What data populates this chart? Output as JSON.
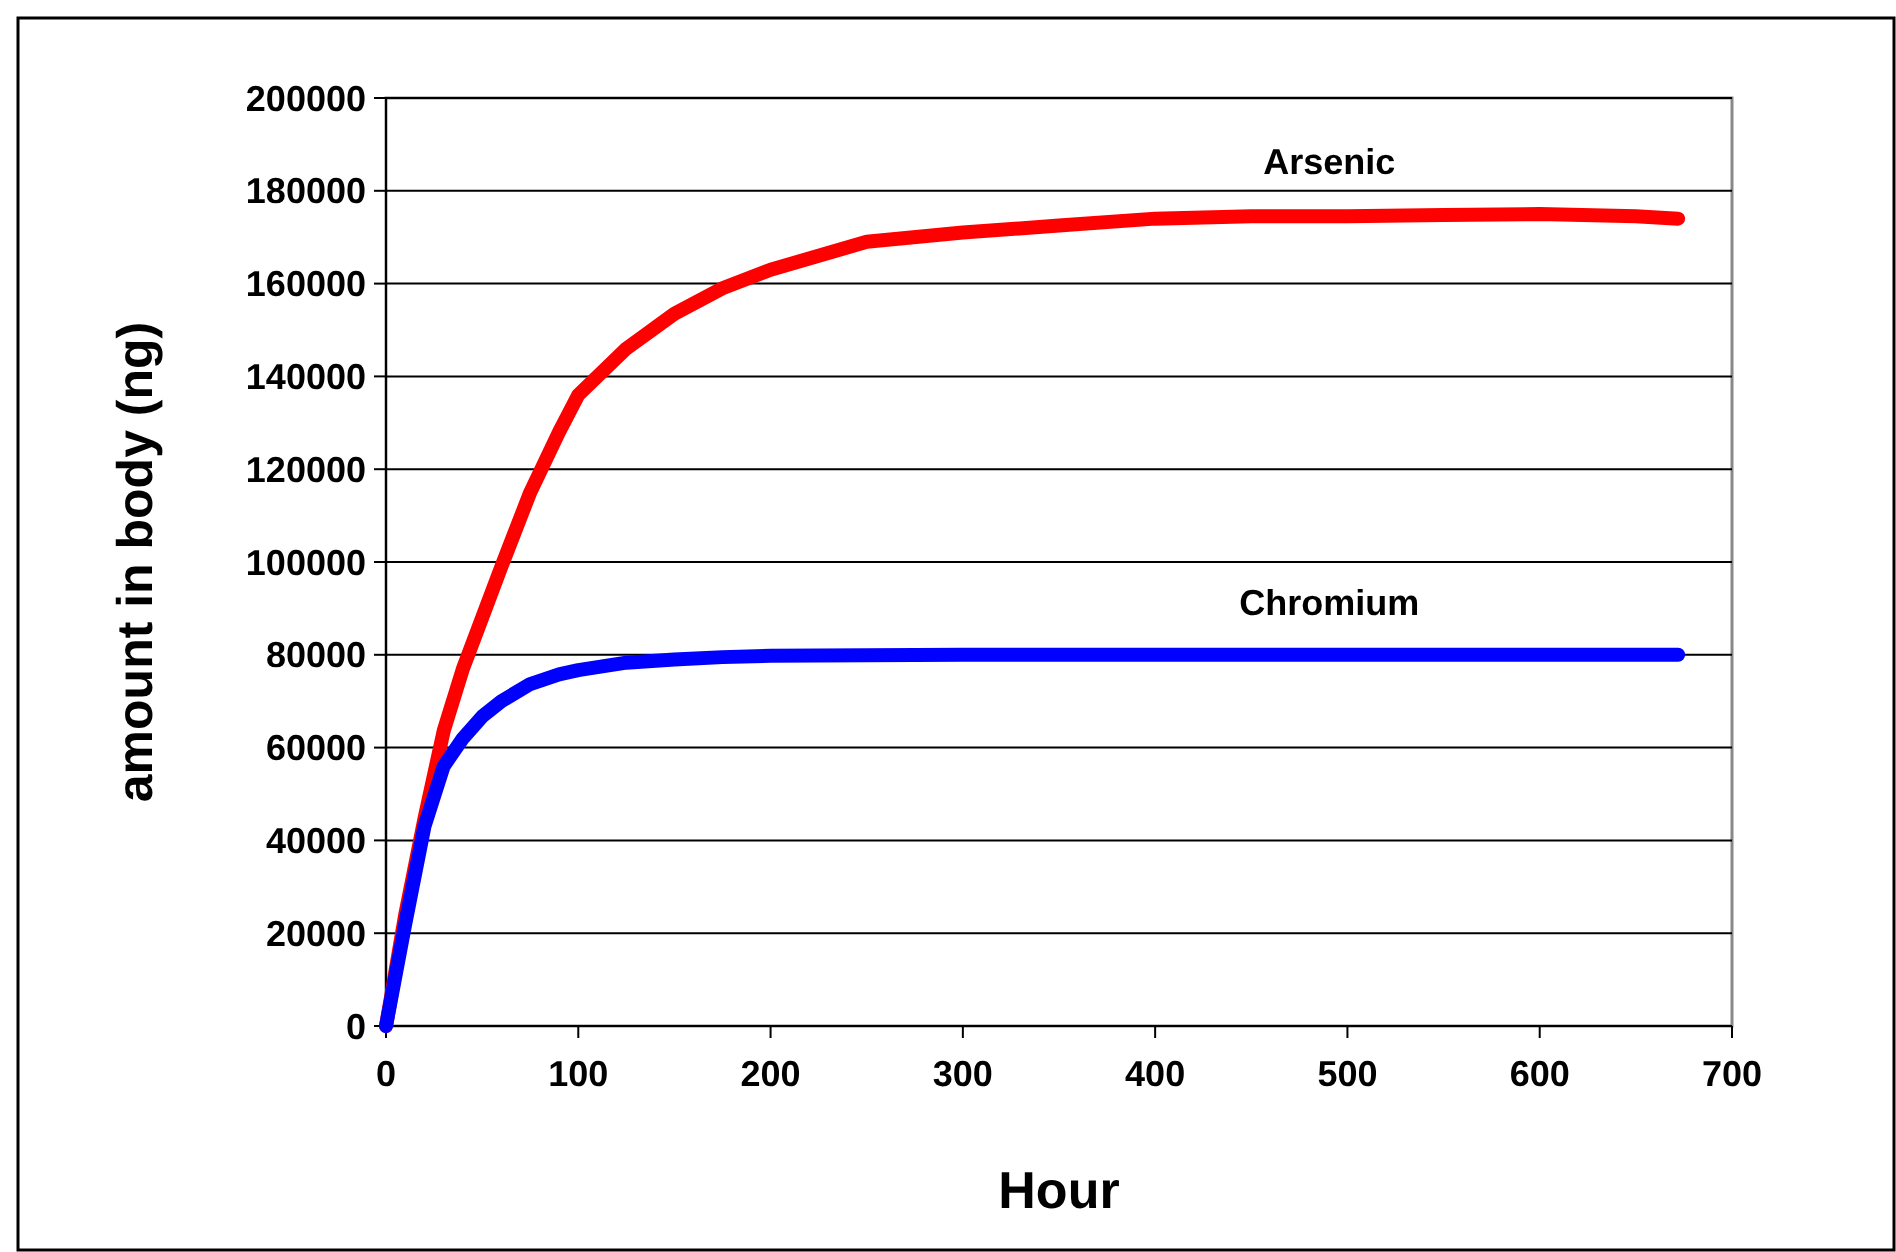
{
  "chart_data": {
    "type": "line",
    "xlabel": "Hour",
    "ylabel": "amount in body (ng)",
    "xlim": [
      0,
      700
    ],
    "xticks": [
      0,
      100,
      200,
      300,
      400,
      500,
      600,
      700
    ],
    "ylim": [
      0,
      200000
    ],
    "yticks": [
      0,
      20000,
      40000,
      60000,
      80000,
      100000,
      120000,
      140000,
      160000,
      180000,
      200000
    ],
    "grid": "y",
    "marker": "none",
    "line_style": "solid",
    "series": [
      {
        "name": "Arsenic",
        "color": "#ff0000",
        "x": [
          0,
          5,
          10,
          20,
          30,
          40,
          50,
          60,
          75,
          90,
          100,
          125,
          150,
          175,
          200,
          250,
          300,
          350,
          400,
          450,
          500,
          550,
          600,
          650,
          672
        ],
        "values": [
          0,
          12000,
          24000,
          44700,
          63600,
          77000,
          88000,
          99000,
          115000,
          128000,
          136000,
          146000,
          153500,
          159000,
          163000,
          169000,
          171000,
          172500,
          174000,
          174500,
          174500,
          174800,
          175000,
          174500,
          174000
        ]
      },
      {
        "name": "Chromium",
        "color": "#0000ff",
        "x": [
          0,
          5,
          10,
          20,
          30,
          40,
          50,
          60,
          75,
          90,
          100,
          125,
          150,
          175,
          200,
          300,
          400,
          500,
          600,
          672
        ],
        "values": [
          0,
          11000,
          22000,
          43000,
          56000,
          62000,
          66700,
          70000,
          73700,
          75800,
          76700,
          78300,
          79000,
          79500,
          79800,
          80000,
          80000,
          80000,
          80000,
          80000
        ]
      }
    ]
  }
}
